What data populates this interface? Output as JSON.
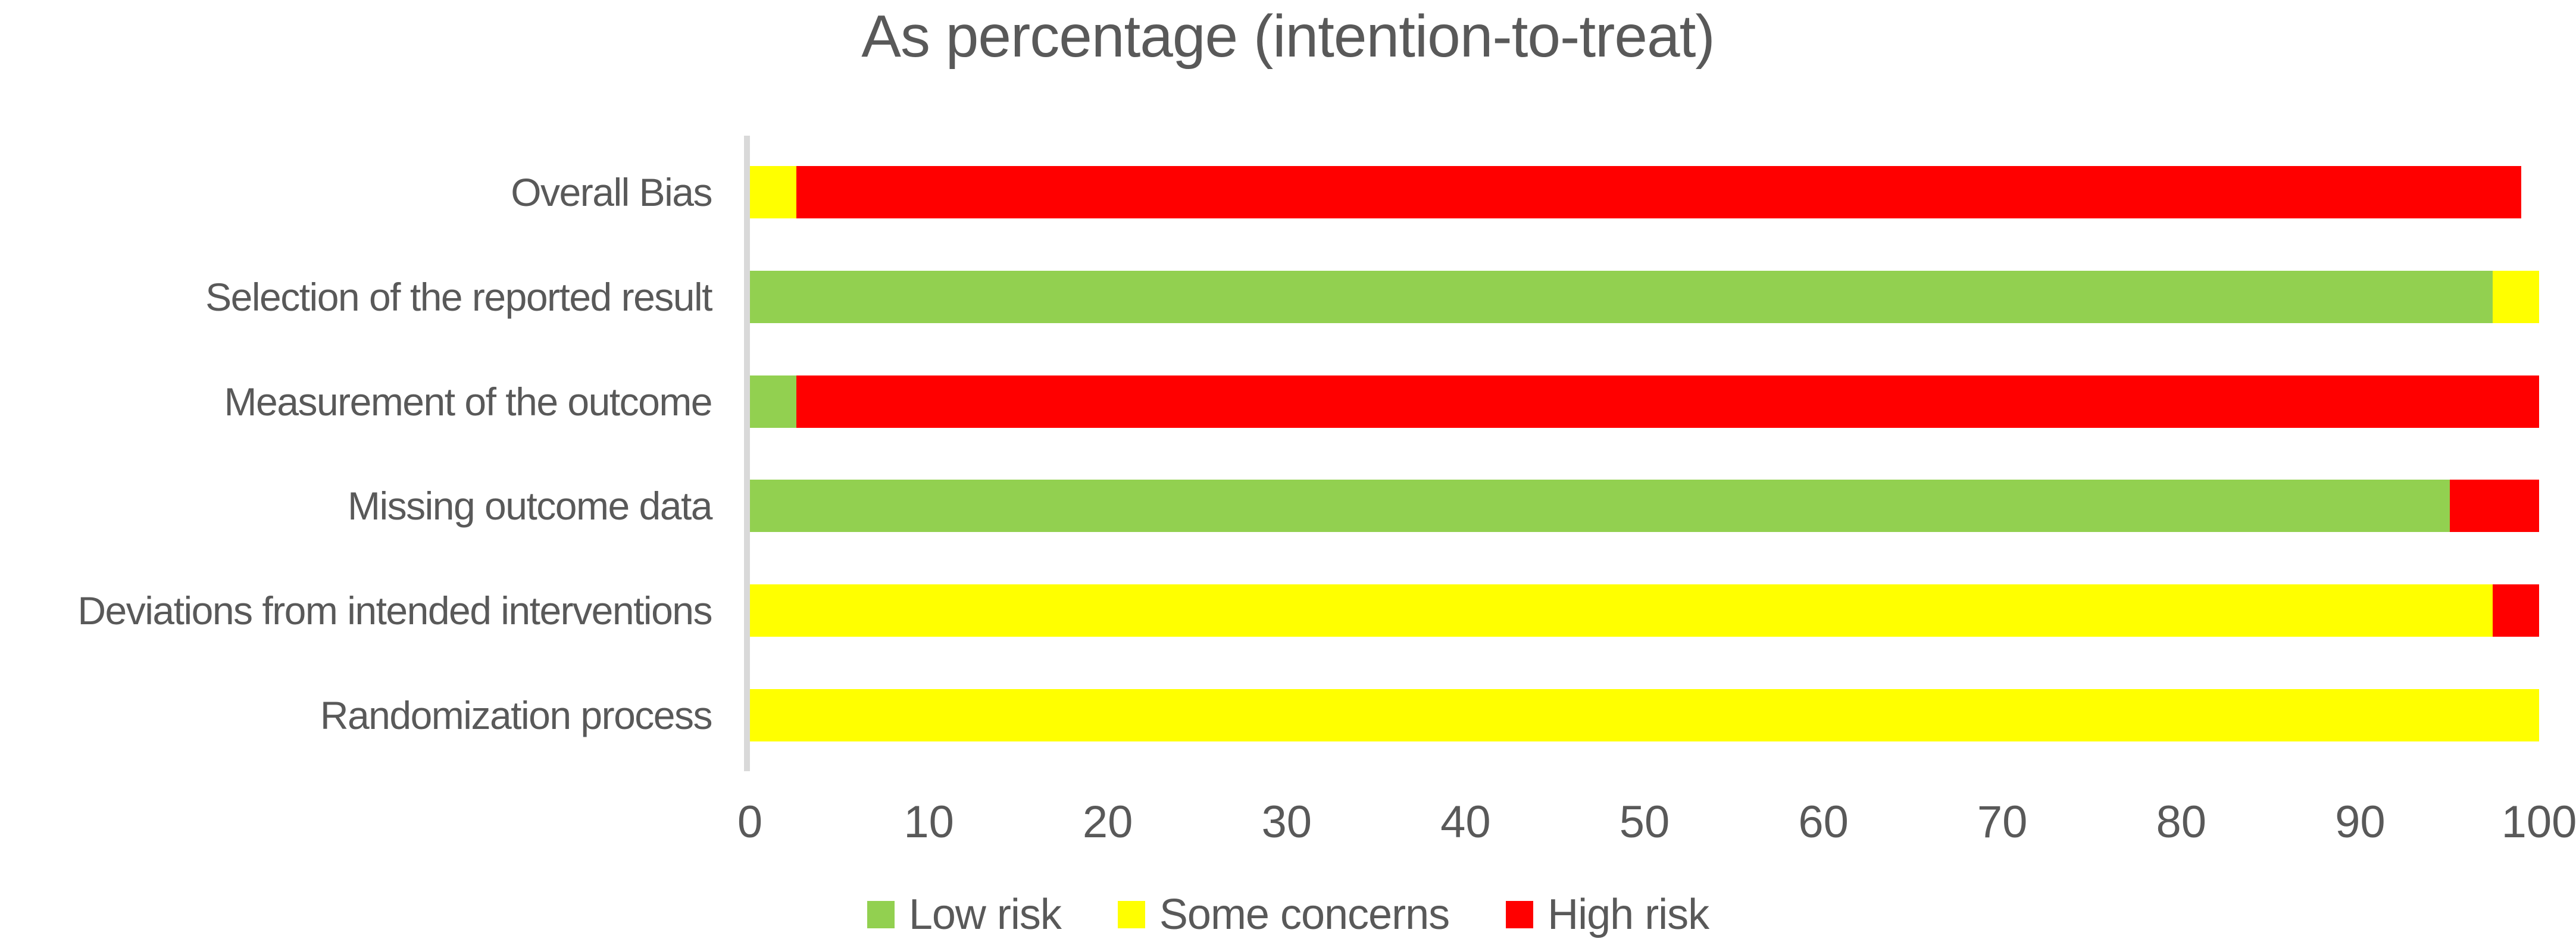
{
  "title": "As percentage (intention-to-treat)",
  "colors": {
    "low_risk": "#92D050",
    "some_concerns": "#FFFF00",
    "high_risk": "#FF0000",
    "text": "#595959",
    "axis_line": "#D9D9D9",
    "background": "#FFFFFF"
  },
  "chart_data": {
    "type": "bar",
    "orientation": "horizontal",
    "stacked": true,
    "title": "As percentage (intention-to-treat)",
    "categories_top_to_bottom": [
      "Overall Bias",
      "Selection of the reported result",
      "Measurement of the outcome",
      "Missing outcome data",
      "Deviations from intended interventions",
      "Randomization process"
    ],
    "series": [
      {
        "name": "Low risk",
        "color": "#92D050",
        "values": [
          0,
          97.4,
          2.6,
          95,
          0,
          0
        ]
      },
      {
        "name": "Some concerns",
        "color": "#FFFF00",
        "values": [
          2.6,
          2.6,
          0,
          0,
          97.4,
          100
        ]
      },
      {
        "name": "High risk",
        "color": "#FF0000",
        "values": [
          96.4,
          0,
          97.4,
          5,
          2.6,
          0
        ]
      }
    ],
    "xlabel": "",
    "ylabel": "",
    "xlim": [
      0,
      100
    ],
    "xticks": [
      0,
      10,
      20,
      30,
      40,
      50,
      60,
      70,
      80,
      90,
      100
    ],
    "grid": false,
    "legend": [
      "Low risk",
      "Some concerns",
      "High risk"
    ],
    "legend_position": "bottom"
  }
}
